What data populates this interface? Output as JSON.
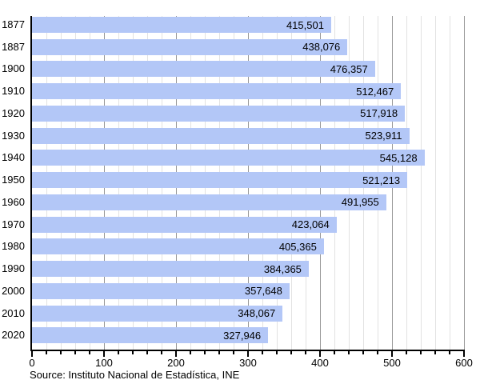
{
  "chart_data": {
    "type": "bar",
    "orientation": "horizontal",
    "categories": [
      "1877",
      "1887",
      "1900",
      "1910",
      "1920",
      "1930",
      "1940",
      "1950",
      "1960",
      "1970",
      "1980",
      "1990",
      "2000",
      "2010",
      "2020"
    ],
    "values": [
      415501,
      438076,
      476357,
      512467,
      517918,
      523911,
      545128,
      521213,
      491955,
      423064,
      405365,
      384365,
      357648,
      348067,
      327946
    ],
    "value_labels": [
      "415,501",
      "438,076",
      "476,357",
      "512,467",
      "517,918",
      "523,911",
      "545,128",
      "521,213",
      "491,955",
      "423,064",
      "405,365",
      "384,365",
      "357,648",
      "348,067",
      "327,946"
    ],
    "xlabel": "",
    "ylabel": "",
    "xlim": [
      0,
      600
    ],
    "x_axis_unit": "thousands",
    "x_tick_labels": [
      0,
      100,
      200,
      300,
      400,
      500,
      600
    ],
    "minor_tick_step": 20,
    "grid": true,
    "legend": null,
    "title": ""
  },
  "footer": {
    "source": "Source: Instituto Nacional de Estadística, INE"
  },
  "colors": {
    "bar_fill": "#b3c7f7",
    "grid_minor": "#e2e2e2",
    "grid_major": "#999999",
    "axis": "#000000",
    "text": "#000000",
    "background": "#ffffff"
  }
}
